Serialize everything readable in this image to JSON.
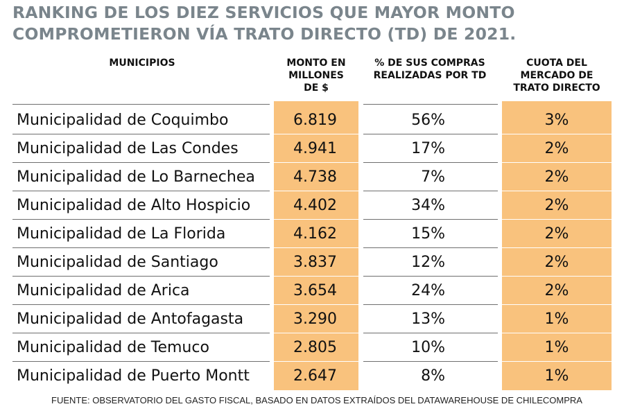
{
  "title": {
    "line1": "RANKING DE LOS DIEZ SERVICIOS QUE MAYOR MONTO",
    "line2": "COMPROMETIERON VÍA TRATO DIRECTO (TD) DE 2021."
  },
  "colors": {
    "highlight": "#f9c27d",
    "title": "#7a858c",
    "rule": "#6e6e6e"
  },
  "chart_data": {
    "type": "table",
    "columns": [
      [
        "MUNICIPIOS"
      ],
      [
        "MONTO EN",
        "MILLONES",
        "DE $"
      ],
      [
        "% DE SUS COMPRAS",
        "REALIZADAS POR TD"
      ],
      [
        "CUOTA DEL",
        "MERCADO DE",
        "TRATO DIRECTO"
      ]
    ],
    "rows": [
      [
        "Municipalidad de Coquimbo",
        "6.819",
        "56%",
        "3%"
      ],
      [
        "Municipalidad de Las Condes",
        "4.941",
        "17%",
        "2%"
      ],
      [
        "Municipalidad de Lo Barnechea",
        "4.738",
        "7%",
        "2%"
      ],
      [
        "Municipalidad de Alto Hospicio",
        "4.402",
        "34%",
        "2%"
      ],
      [
        "Municipalidad de La Florida",
        "4.162",
        "15%",
        "2%"
      ],
      [
        "Municipalidad de Santiago",
        "3.837",
        "12%",
        "2%"
      ],
      [
        "Municipalidad de Arica",
        "3.654",
        "24%",
        "2%"
      ],
      [
        "Municipalidad de Antofagasta",
        "3.290",
        "13%",
        "1%"
      ],
      [
        "Municipalidad de Temuco",
        "2.805",
        "10%",
        "1%"
      ],
      [
        "Municipalidad de Puerto Montt",
        "2.647",
        "8%",
        "1%"
      ]
    ]
  },
  "footer": "FUENTE: OBSERVATORIO DEL GASTO FISCAL, BASADO EN DATOS EXTRAÍDOS DEL DATAWAREHOUSE DE CHILECOMPRA"
}
